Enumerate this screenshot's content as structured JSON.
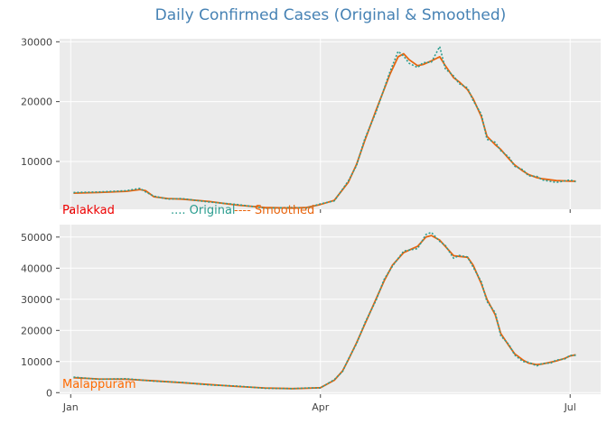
{
  "colors": {
    "title": "#4682b4",
    "panel_bg": "#ebebeb",
    "grid": "#ffffff",
    "original": "#2a9d8f",
    "smoothed": "#e8650f",
    "label_palakkad": "#ee0000",
    "label_malappuram": "#ff6a00"
  },
  "chart_data": {
    "type": "line",
    "title": "Daily Confirmed Cases (Original & Smoothed)",
    "legend": {
      "position": "between-panels",
      "original_label": ".... Original",
      "smoothed_label": "---- Smoothed"
    },
    "xlabel": "",
    "x_ticks": [
      "Jan",
      "Apr",
      "Jul"
    ],
    "x_tick_days": [
      0,
      90,
      180
    ],
    "xlim": [
      -4,
      191
    ],
    "panels": [
      {
        "label": "Palakkad",
        "ylabel": "",
        "ylim": [
          2000,
          30500
        ],
        "y_ticks": [
          10000,
          20000,
          30000
        ],
        "y_tick_labels": [
          "10000",
          "20000",
          "30000"
        ],
        "series": [
          {
            "name": "Smoothed",
            "x": [
              1,
              10,
              20,
              25,
              27,
              30,
              35,
              40,
              50,
              60,
              70,
              80,
              85,
              90,
              95,
              100,
              103,
              106,
              110,
              115,
              118,
              120,
              122,
              125,
              127,
              130,
              133,
              135,
              138,
              140,
              143,
              145,
              148,
              150,
              153,
              155,
              158,
              160,
              163,
              165,
              168,
              170,
              175,
              180,
              182
            ],
            "y": [
              4700,
              4800,
              5000,
              5300,
              5100,
              4100,
              3800,
              3700,
              3300,
              2700,
              2300,
              2200,
              2300,
              2800,
              3500,
              6500,
              9500,
              13500,
              18500,
              24500,
              27500,
              28000,
              27000,
              26000,
              26200,
              26800,
              27500,
              26000,
              24000,
              23300,
              22000,
              20500,
              17500,
              14200,
              12800,
              12000,
              10400,
              9400,
              8400,
              7800,
              7300,
              7100,
              6800,
              6700,
              6700
            ]
          },
          {
            "name": "Original",
            "x": [
              1,
              10,
              20,
              25,
              27,
              30,
              35,
              40,
              50,
              60,
              70,
              80,
              85,
              90,
              95,
              100,
              103,
              106,
              110,
              115,
              118,
              120,
              122,
              125,
              127,
              130,
              133,
              135,
              138,
              140,
              143,
              145,
              148,
              150,
              153,
              155,
              158,
              160,
              163,
              165,
              168,
              170,
              175,
              180,
              182
            ],
            "y": [
              4800,
              4900,
              5100,
              5500,
              4900,
              4200,
              3700,
              3800,
              3200,
              2800,
              2200,
              2300,
              2200,
              2900,
              3400,
              6700,
              9300,
              13800,
              18200,
              24900,
              28400,
              27600,
              26400,
              25700,
              26500,
              26600,
              29200,
              25500,
              24300,
              23000,
              22300,
              20200,
              17900,
              13700,
              13200,
              11800,
              10700,
              9200,
              8600,
              7600,
              7500,
              6900,
              6500,
              6900,
              6600
            ]
          }
        ]
      },
      {
        "label": "Malappuram",
        "ylabel": "",
        "ylim": [
          -500,
          54000
        ],
        "y_ticks": [
          0,
          10000,
          20000,
          30000,
          40000,
          50000
        ],
        "y_tick_labels": [
          "0",
          "10000",
          "20000",
          "30000",
          "40000",
          "50000"
        ],
        "series": [
          {
            "name": "Smoothed",
            "x": [
              1,
              10,
              20,
              30,
              40,
              50,
              60,
              70,
              80,
              85,
              90,
              95,
              98,
              100,
              103,
              106,
              110,
              113,
              116,
              120,
              125,
              128,
              130,
              133,
              135,
              138,
              140,
              143,
              145,
              148,
              150,
              153,
              155,
              158,
              160,
              163,
              165,
              168,
              170,
              173,
              175,
              178,
              180,
              182
            ],
            "y": [
              4800,
              4400,
              4300,
              3800,
              3200,
              2600,
              2000,
              1500,
              1300,
              1400,
              1600,
              4000,
              7000,
              10500,
              16000,
              22000,
              30000,
              36000,
              41000,
              45000,
              47000,
              50000,
              50500,
              49000,
              47000,
              44000,
              43800,
              43500,
              41000,
              35000,
              30000,
              25000,
              19000,
              15000,
              12500,
              10500,
              9500,
              9000,
              9200,
              9800,
              10200,
              11000,
              11800,
              12200
            ]
          },
          {
            "name": "Original",
            "x": [
              1,
              10,
              20,
              30,
              40,
              50,
              60,
              70,
              80,
              85,
              90,
              95,
              98,
              100,
              103,
              106,
              110,
              113,
              116,
              120,
              125,
              128,
              130,
              133,
              135,
              138,
              140,
              143,
              145,
              148,
              150,
              153,
              155,
              158,
              160,
              163,
              165,
              168,
              170,
              173,
              175,
              178,
              180,
              182
            ],
            "y": [
              5000,
              4300,
              4500,
              3700,
              3300,
              2500,
              2100,
              1400,
              1300,
              1500,
              1500,
              4200,
              6800,
              10700,
              15700,
              22400,
              29600,
              36500,
              40700,
              45500,
              46300,
              50800,
              51500,
              48600,
              47300,
              43200,
              44100,
              43600,
              40400,
              35600,
              29300,
              25700,
              18300,
              15400,
              12100,
              10000,
              9800,
              8600,
              9400,
              9500,
              10500,
              10800,
              12000,
              12000
            ]
          }
        ]
      }
    ]
  }
}
